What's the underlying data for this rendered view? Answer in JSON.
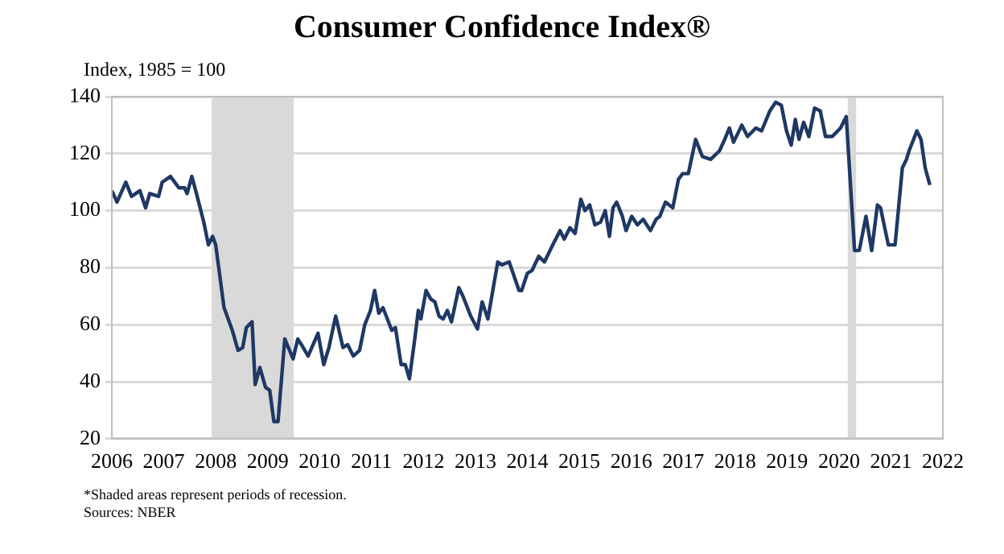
{
  "chart_data": {
    "type": "line",
    "title": "Consumer Confidence Index®",
    "ylabel": "Index, 1985 = 100",
    "annotations": [
      "*Shaded areas represent periods of recession.",
      "Sources: NBER"
    ],
    "x": [
      2006.0,
      2006.1,
      2006.27,
      2006.38,
      2006.54,
      2006.65,
      2006.73,
      2006.9,
      2006.97,
      2007.13,
      2007.29,
      2007.4,
      2007.45,
      2007.54,
      2007.63,
      2007.77,
      2007.86,
      2007.94,
      2008.0,
      2008.16,
      2008.32,
      2008.43,
      2008.52,
      2008.59,
      2008.7,
      2008.76,
      2008.85,
      2008.96,
      2009.04,
      2009.12,
      2009.2,
      2009.33,
      2009.49,
      2009.58,
      2009.65,
      2009.78,
      2009.97,
      2010.08,
      2010.18,
      2010.31,
      2010.45,
      2010.54,
      2010.65,
      2010.77,
      2010.87,
      2010.98,
      2011.06,
      2011.14,
      2011.22,
      2011.39,
      2011.46,
      2011.57,
      2011.65,
      2011.73,
      2011.84,
      2011.9,
      2011.95,
      2012.05,
      2012.14,
      2012.22,
      2012.3,
      2012.38,
      2012.46,
      2012.54,
      2012.68,
      2012.76,
      2012.91,
      2013.04,
      2013.13,
      2013.24,
      2013.43,
      2013.51,
      2013.65,
      2013.84,
      2013.89,
      2014.0,
      2014.09,
      2014.22,
      2014.33,
      2014.49,
      2014.63,
      2014.71,
      2014.82,
      2014.92,
      2015.03,
      2015.11,
      2015.2,
      2015.3,
      2015.41,
      2015.5,
      2015.58,
      2015.65,
      2015.72,
      2015.83,
      2015.9,
      2016.01,
      2016.12,
      2016.23,
      2016.37,
      2016.48,
      2016.55,
      2016.66,
      2016.8,
      2016.91,
      2016.99,
      2017.1,
      2017.24,
      2017.37,
      2017.53,
      2017.7,
      2017.8,
      2017.89,
      2017.97,
      2018.13,
      2018.24,
      2018.4,
      2018.51,
      2018.67,
      2018.78,
      2018.89,
      2018.99,
      2019.08,
      2019.16,
      2019.23,
      2019.32,
      2019.42,
      2019.53,
      2019.64,
      2019.74,
      2019.87,
      2020.03,
      2020.14,
      2020.3,
      2020.39,
      2020.52,
      2020.63,
      2020.74,
      2020.8,
      2020.95,
      2021.08,
      2021.22,
      2021.3,
      2021.35,
      2021.5,
      2021.58,
      2021.66,
      2021.75
    ],
    "series": [
      {
        "color": "#1f3864",
        "values": [
          107,
          103,
          110,
          105,
          107,
          101,
          106,
          105,
          110,
          112,
          108,
          108,
          106,
          112,
          106,
          96,
          88,
          91,
          88,
          66,
          58,
          51,
          52,
          59,
          61,
          39,
          45,
          38,
          37,
          26,
          26,
          55,
          48,
          55,
          53,
          49,
          57,
          46,
          52,
          63,
          52,
          53,
          49,
          51,
          60,
          65,
          72,
          64,
          66,
          58,
          59,
          46,
          46,
          41,
          56,
          65,
          62,
          72,
          69,
          68,
          63,
          62,
          65,
          61,
          73,
          70,
          63,
          58.5,
          68,
          62,
          82,
          81,
          82,
          72,
          72,
          78,
          79,
          84,
          82,
          88,
          93,
          90,
          94,
          92,
          104,
          100,
          102,
          95,
          96,
          100,
          91,
          101,
          103,
          98,
          93,
          98,
          95,
          97,
          93,
          97,
          98,
          103,
          101,
          111,
          113,
          113,
          125,
          119,
          118,
          121,
          125,
          129,
          124,
          130,
          126,
          129,
          128,
          135,
          138,
          137,
          128,
          123,
          132,
          125,
          131,
          126,
          136,
          135,
          126,
          126,
          129,
          133,
          86,
          86,
          98,
          86,
          102,
          101,
          88,
          88,
          115,
          118,
          121,
          128,
          125,
          115,
          109
        ]
      }
    ],
    "xlim": [
      2006,
      2022
    ],
    "xticks": [
      2006,
      2007,
      2008,
      2009,
      2010,
      2011,
      2012,
      2013,
      2014,
      2015,
      2016,
      2017,
      2018,
      2019,
      2020,
      2021,
      2022
    ],
    "ylim": [
      20,
      140
    ],
    "yticks": [
      20,
      40,
      60,
      80,
      100,
      120,
      140
    ],
    "grid": "y",
    "legend": false,
    "bands": [
      {
        "axis": "x",
        "from": 2007.92,
        "to": 2009.5,
        "color": "#d9d9d9"
      },
      {
        "axis": "x",
        "from": 2020.17,
        "to": 2020.33,
        "color": "#d9d9d9"
      }
    ]
  }
}
